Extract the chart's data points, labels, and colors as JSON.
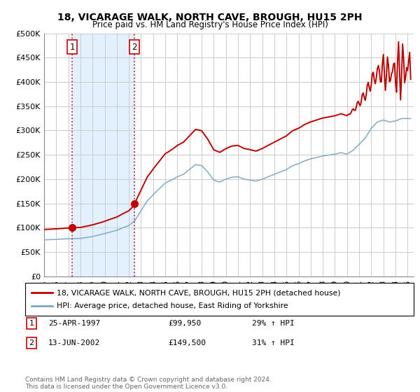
{
  "title": "18, VICARAGE WALK, NORTH CAVE, BROUGH, HU15 2PH",
  "subtitle": "Price paid vs. HM Land Registry's House Price Index (HPI)",
  "ylim": [
    0,
    500000
  ],
  "xlim": [
    1995.0,
    2025.5
  ],
  "yticks": [
    0,
    50000,
    100000,
    150000,
    200000,
    250000,
    300000,
    350000,
    400000,
    450000,
    500000
  ],
  "ytick_labels": [
    "£0",
    "£50K",
    "£100K",
    "£150K",
    "£200K",
    "£250K",
    "£300K",
    "£350K",
    "£400K",
    "£450K",
    "£500K"
  ],
  "sale1_x": 1997.31,
  "sale1_y": 99950,
  "sale1_label": "1",
  "sale1_date": "25-APR-1997",
  "sale1_price": "£99,950",
  "sale1_hpi": "29% ↑ HPI",
  "sale2_x": 2002.44,
  "sale2_y": 149500,
  "sale2_label": "2",
  "sale2_date": "13-JUN-2002",
  "sale2_price": "£149,500",
  "sale2_hpi": "31% ↑ HPI",
  "line_color_red": "#c00000",
  "line_color_blue": "#7aa6c8",
  "shade_color": "#ddeeff",
  "vline_color": "#cc0000",
  "marker_color": "#c00000",
  "box_color": "#cc0000",
  "legend_line1": "18, VICARAGE WALK, NORTH CAVE, BROUGH, HU15 2PH (detached house)",
  "legend_line2": "HPI: Average price, detached house, East Riding of Yorkshire",
  "footer": "Contains HM Land Registry data © Crown copyright and database right 2024.\nThis data is licensed under the Open Government Licence v3.0.",
  "background_color": "#ffffff",
  "grid_color": "#cccccc"
}
